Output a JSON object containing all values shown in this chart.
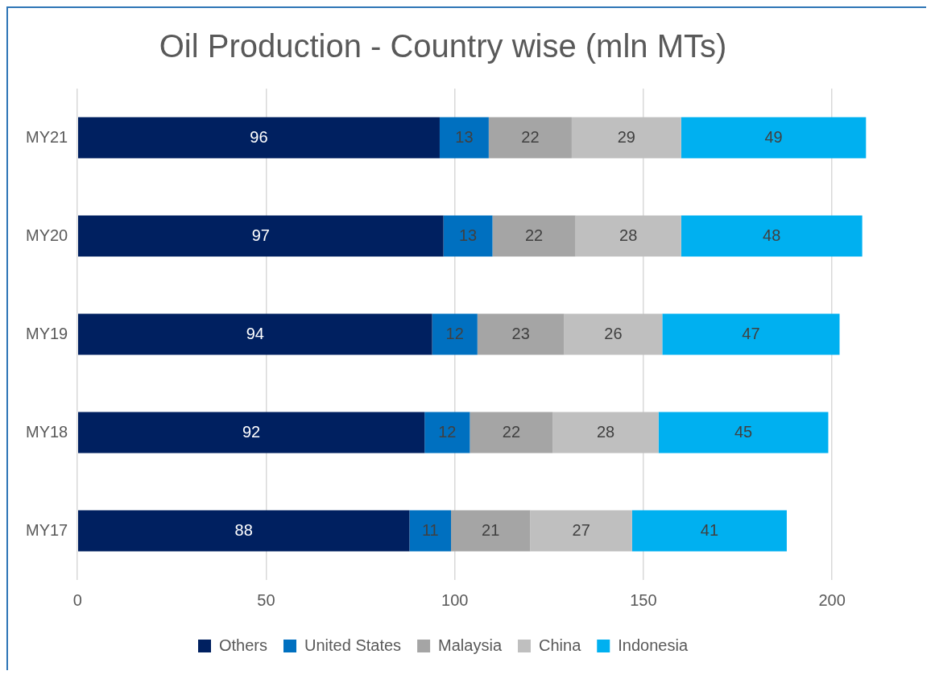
{
  "chart_data": {
    "type": "bar",
    "orientation": "horizontal",
    "stacked": true,
    "title": "Oil Production - Country wise (mln MTs)",
    "categories": [
      "MY21",
      "MY20",
      "MY19",
      "MY18",
      "MY17"
    ],
    "series": [
      {
        "name": "Others",
        "color": "#002060",
        "values": [
          96,
          97,
          94,
          92,
          88
        ]
      },
      {
        "name": "United States",
        "color": "#0070c0",
        "values": [
          13,
          13,
          12,
          12,
          11
        ]
      },
      {
        "name": "Malaysia",
        "color": "#a5a5a5",
        "values": [
          22,
          22,
          23,
          22,
          21
        ]
      },
      {
        "name": "China",
        "color": "#bfbfbf",
        "values": [
          29,
          28,
          26,
          28,
          27
        ]
      },
      {
        "name": "Indonesia",
        "color": "#00b0f0",
        "values": [
          49,
          48,
          47,
          45,
          41
        ]
      }
    ],
    "xlim": [
      0,
      210
    ],
    "xticks": [
      0,
      50,
      100,
      150,
      200
    ],
    "grid": "x",
    "legend": "bottom",
    "data_labels": true
  }
}
